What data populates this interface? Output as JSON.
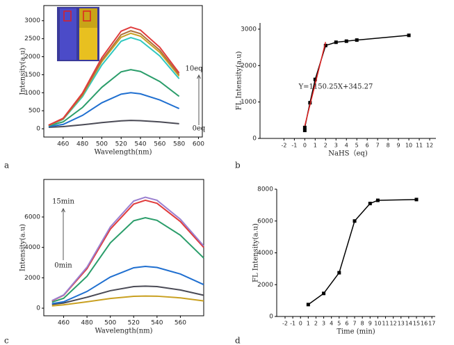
{
  "chart_data": [
    {
      "type": "line",
      "panel_label": "a",
      "x_label": "Wavelength(nm)",
      "y_label": "Intensity(a.u)",
      "annotations": [
        "10eq",
        "0eq"
      ],
      "x": [
        445,
        460,
        480,
        500,
        520,
        530,
        540,
        560,
        580
      ],
      "series": [
        {
          "color": "#4a4a55",
          "values": [
            40,
            60,
            110,
            170,
            220,
            230,
            225,
            190,
            140
          ]
        },
        {
          "color": "#1f6fd0",
          "values": [
            60,
            120,
            370,
            720,
            960,
            1000,
            970,
            800,
            560
          ]
        },
        {
          "color": "#2a9d6a",
          "values": [
            80,
            190,
            590,
            1150,
            1580,
            1640,
            1590,
            1310,
            900
          ]
        },
        {
          "color": "#30c8c0",
          "values": [
            90,
            260,
            890,
            1770,
            2430,
            2530,
            2450,
            2020,
            1390
          ]
        },
        {
          "color": "#c9a227",
          "values": [
            95,
            270,
            930,
            1860,
            2540,
            2650,
            2570,
            2120,
            1460
          ]
        },
        {
          "color": "#b0703a",
          "values": [
            98,
            275,
            950,
            1900,
            2610,
            2720,
            2640,
            2180,
            1500
          ]
        },
        {
          "color": "#e03c3c",
          "values": [
            100,
            290,
            990,
            1970,
            2710,
            2820,
            2740,
            2260,
            1550
          ]
        }
      ],
      "xlim": [
        440,
        604
      ],
      "xticks": [
        460,
        480,
        500,
        520,
        540,
        560,
        580,
        600
      ],
      "ylim": [
        -230,
        3420
      ],
      "yticks": [
        0,
        500,
        1000,
        1500,
        2000,
        2500,
        3000
      ],
      "frame": true
    },
    {
      "type": "line",
      "panel_label": "b",
      "x_label": "NaHS（eq)",
      "y_label": "FL Intensity(a.u)",
      "annotations": [
        "Y=1150.25X+345.27"
      ],
      "series": [
        {
          "color": "#000000",
          "markers": true,
          "x": [
            0,
            0,
            0.5,
            1,
            2,
            3,
            4,
            5,
            10
          ],
          "values": [
            220,
            300,
            980,
            1620,
            2550,
            2640,
            2670,
            2700,
            2830
          ]
        },
        {
          "color": "#e02020",
          "markers": false,
          "x": [
            0,
            2
          ],
          "values": [
            345.27,
            2645.77
          ]
        }
      ],
      "xlim": [
        -4.3,
        12.6
      ],
      "xticks": [
        -2,
        -1,
        0,
        1,
        2,
        3,
        4,
        5,
        6,
        7,
        8,
        9,
        10,
        11,
        12
      ],
      "ylim": [
        0,
        3170
      ],
      "yticks": [
        0,
        1000,
        2000,
        3000
      ],
      "frame": false
    },
    {
      "type": "line",
      "panel_label": "c",
      "x_label": "Wavelength(nm)",
      "y_label": "Intensity(a.u)",
      "annotations": [
        "15min",
        "0min"
      ],
      "x": [
        450,
        460,
        480,
        500,
        520,
        530,
        540,
        560,
        580
      ],
      "series": [
        {
          "color": "#c9a020",
          "values": [
            150,
            220,
            420,
            640,
            780,
            800,
            790,
            680,
            480
          ]
        },
        {
          "color": "#4a4a55",
          "values": [
            250,
            340,
            720,
            1150,
            1420,
            1450,
            1420,
            1200,
            850
          ]
        },
        {
          "color": "#1f6fd0",
          "values": [
            300,
            420,
            1100,
            2050,
            2660,
            2750,
            2680,
            2250,
            1550
          ]
        },
        {
          "color": "#2a9d6a",
          "values": [
            400,
            650,
            2100,
            4300,
            5750,
            5950,
            5780,
            4800,
            3300
          ]
        },
        {
          "color": "#e03c3c",
          "values": [
            480,
            850,
            2600,
            5200,
            6850,
            7100,
            6900,
            5700,
            4000
          ]
        },
        {
          "color": "#9b80d0",
          "values": [
            500,
            870,
            2700,
            5350,
            7050,
            7300,
            7100,
            5850,
            4100
          ]
        }
      ],
      "xlim": [
        443,
        580
      ],
      "xticks": [
        460,
        480,
        500,
        520,
        540,
        560
      ],
      "ylim": [
        -500,
        8470
      ],
      "yticks": [
        0,
        2000,
        4000,
        6000
      ],
      "frame": true
    },
    {
      "type": "line",
      "panel_label": "d",
      "x_label": "Time (min)",
      "y_label": "FL Intensity(a.u)",
      "annotations": [],
      "series": [
        {
          "color": "#000000",
          "markers": true,
          "x": [
            1,
            3,
            5,
            7,
            9,
            10,
            15
          ],
          "values": [
            750,
            1450,
            2750,
            6000,
            7100,
            7300,
            7350
          ]
        }
      ],
      "xlim": [
        -3.08,
        17.43
      ],
      "xticks": [
        -2,
        -1,
        0,
        1,
        2,
        3,
        4,
        5,
        6,
        7,
        8,
        9,
        10,
        11,
        12,
        13,
        14,
        15,
        16,
        17
      ],
      "ylim": [
        0,
        8000
      ],
      "yticks": [
        0,
        2000,
        4000,
        6000,
        8000
      ],
      "frame": false
    }
  ]
}
